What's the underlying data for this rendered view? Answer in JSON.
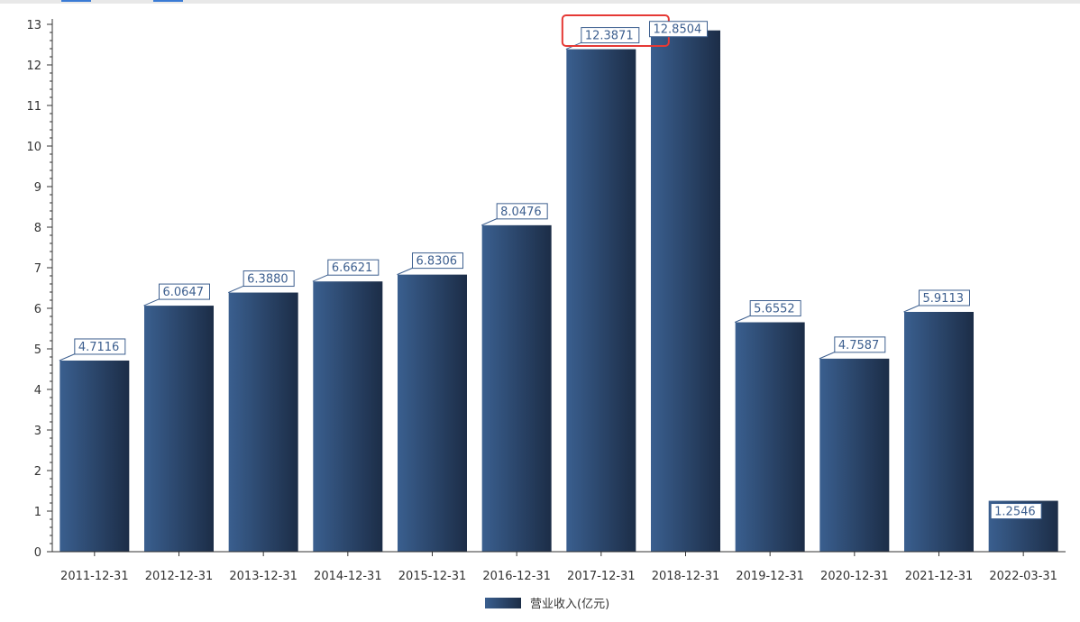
{
  "chart_data": {
    "type": "bar",
    "categories": [
      "2011-12-31",
      "2012-12-31",
      "2013-12-31",
      "2014-12-31",
      "2015-12-31",
      "2016-12-31",
      "2017-12-31",
      "2018-12-31",
      "2019-12-31",
      "2020-12-31",
      "2021-12-31",
      "2022-03-31"
    ],
    "series": [
      {
        "name": "营业收入(亿元)",
        "values": [
          4.7116,
          6.0647,
          6.388,
          6.6621,
          6.8306,
          8.0476,
          12.3871,
          12.8504,
          5.6552,
          4.7587,
          5.9113,
          1.2546
        ]
      }
    ],
    "data_labels": [
      "4.7116",
      "6.0647",
      "6.3880",
      "6.6621",
      "6.8306",
      "8.0476",
      "12.3871",
      "12.8504",
      "5.6552",
      "4.7587",
      "5.9113",
      "1.2546"
    ],
    "y_ticks": [
      "0",
      "1",
      "2",
      "3",
      "4",
      "5",
      "6",
      "7",
      "8",
      "9",
      "10",
      "11",
      "12",
      "13"
    ],
    "ylim": [
      0,
      13
    ],
    "grid": false,
    "legend_position": "bottom-center",
    "highlighted_category": "2017-12-31",
    "colors": {
      "bar_light": "#3a5f8f",
      "bar_dark": "#1c2d47",
      "label_border": "#3d5f8f",
      "highlight": "#e53935",
      "axis": "#333333"
    }
  }
}
